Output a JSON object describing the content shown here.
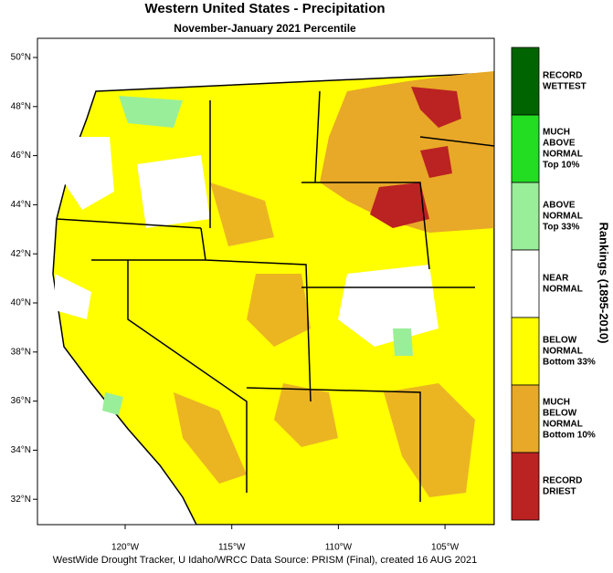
{
  "header": {
    "title": "Western United States - Precipitation",
    "subtitle": "November-January 2021 Percentile"
  },
  "map": {
    "lat_labels": [
      "50°N",
      "48°N",
      "46°N",
      "44°N",
      "42°N",
      "40°N",
      "38°N",
      "36°N",
      "34°N",
      "32°N"
    ],
    "lon_labels": [
      "120°W",
      "115°W",
      "110°W",
      "105°W"
    ]
  },
  "legend": {
    "title": "Rankings (1895-2010)",
    "items": [
      {
        "color": "#006400",
        "lines": [
          "RECORD",
          "WETTEST"
        ]
      },
      {
        "color": "#22dd22",
        "lines": [
          "MUCH",
          "ABOVE",
          "NORMAL",
          "Top 10%"
        ]
      },
      {
        "color": "#99ee99",
        "lines": [
          "ABOVE",
          "NORMAL",
          "Top 33%"
        ]
      },
      {
        "color": "#ffffff",
        "lines": [
          "NEAR",
          "NORMAL"
        ]
      },
      {
        "color": "#ffff00",
        "lines": [
          "BELOW",
          "NORMAL",
          "Bottom 33%"
        ]
      },
      {
        "color": "#e8a828",
        "lines": [
          "MUCH",
          "BELOW",
          "NORMAL",
          "Bottom 10%"
        ]
      },
      {
        "color": "#bb2222",
        "lines": [
          "RECORD",
          "DRIEST"
        ]
      }
    ]
  },
  "footer": "WestWide Drought Tracker, U Idaho/WRCC Data Source: PRISM (Final), created 16 AUG 2021"
}
